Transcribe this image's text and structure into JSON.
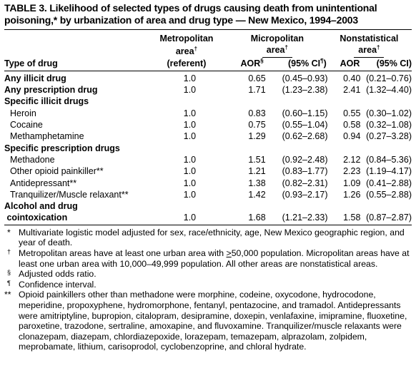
{
  "title_line1": "TABLE 3.  Likelihood of selected types of drugs causing death from unintentional",
  "title_line2": "poisoning,* by urbanization of area and drug type — New Mexico, 1994–2003",
  "header": {
    "type_of_drug": "Type of drug",
    "metro_line1": "Metropolitan",
    "metro_line2": "area",
    "metro_sup": "†",
    "metro_line3": "(referent)",
    "micro_line1": "Micropolitan",
    "micro_line2": "area",
    "micro_sup": "†",
    "non_line1": "Nonstatistical",
    "non_line2": "area",
    "non_sup": "†",
    "aor_micro": "AOR",
    "aor_micro_sup": "§",
    "ci_micro": "(95% CI",
    "ci_micro_sup": "¶",
    "ci_micro_close": ")",
    "aor_non": "AOR",
    "ci_non": "(95% CI)"
  },
  "rows": [
    {
      "label": "Any illicit drug",
      "bold": true,
      "indent": false,
      "metro": "1.0",
      "aor1": "0.65",
      "ci1": "(0.45–0.93)",
      "aor2": "0.40",
      "ci2": "(0.21–0.76)"
    },
    {
      "label": "Any prescription drug",
      "bold": true,
      "indent": false,
      "metro": "1.0",
      "aor1": "1.71",
      "ci1": "(1.23–2.38)",
      "aor2": "2.41",
      "ci2": "(1.32–4.40)"
    },
    {
      "label": "Specific illicit drugs",
      "bold": true,
      "indent": false,
      "section": true
    },
    {
      "label": "Heroin",
      "bold": false,
      "indent": true,
      "metro": "1.0",
      "aor1": "0.83",
      "ci1": "(0.60–1.15)",
      "aor2": "0.55",
      "ci2": "(0.30–1.02)"
    },
    {
      "label": "Cocaine",
      "bold": false,
      "indent": true,
      "metro": "1.0",
      "aor1": "0.75",
      "ci1": "(0.55–1.04)",
      "aor2": "0.58",
      "ci2": "(0.32–1.08)"
    },
    {
      "label": "Methamphetamine",
      "bold": false,
      "indent": true,
      "metro": "1.0",
      "aor1": "1.29",
      "ci1": "(0.62–2.68)",
      "aor2": "0.94",
      "ci2": "(0.27–3.28)"
    },
    {
      "label": "Specific prescription drugs",
      "bold": true,
      "indent": false,
      "section": true
    },
    {
      "label": "Methadone",
      "bold": false,
      "indent": true,
      "metro": "1.0",
      "aor1": "1.51",
      "ci1": "(0.92–2.48)",
      "aor2": "2.12",
      "ci2": "(0.84–5.36)"
    },
    {
      "label": "Other opioid painkiller**",
      "bold": false,
      "indent": true,
      "metro": "1.0",
      "aor1": "1.21",
      "ci1": "(0.83–1.77)",
      "aor2": "2.23",
      "ci2": "(1.19–4.17)"
    },
    {
      "label": "Antidepressant**",
      "bold": false,
      "indent": true,
      "metro": "1.0",
      "aor1": "1.38",
      "ci1": "(0.82–2.31)",
      "aor2": "1.09",
      "ci2": "(0.41–2.88)"
    },
    {
      "label": "Tranquilizer/Muscle relaxant**",
      "bold": false,
      "indent": true,
      "metro": "1.0",
      "aor1": "1.42",
      "ci1": "(0.93–2.17)",
      "aor2": "1.26",
      "ci2": "(0.55–2.88)"
    }
  ],
  "last_row": {
    "label_line1": "Alcohol and drug",
    "label_line2": " cointoxication",
    "metro": "1.0",
    "aor1": "1.68",
    "ci1": "(1.21–2.33)",
    "aor2": "1.58",
    "ci2": "(0.87–2.87)"
  },
  "notes": {
    "n1_mark": "*",
    "n1": "Multivariate logistic model adjusted for sex, race/ethnicity, age, New Mexico geographic region, and year of death.",
    "n2_mark": "†",
    "n2_a": "Metropolitan areas have at least one urban area with ",
    "n2_ge": ">",
    "n2_b": "50,000 population. Micropolitan areas have at least one urban area with 10,000–49,999 population. All other areas are nonstatistical areas.",
    "n3_mark": "§",
    "n3": "Adjusted odds ratio.",
    "n4_mark": "¶",
    "n4": "Confidence interval.",
    "n5_mark": "**",
    "n5": "Opioid painkillers other than methadone were morphine, codeine, oxycodone, hydrocodone, meperidine, propoxyphene, hydromorphone, fentanyl, pentazocine, and tramadol. Antidepressants were amitriptyline, bupropion, citalopram, desipramine, doxepin, venlafaxine, imipramine, fluoxetine, paroxetine, trazodone, sertraline, amoxapine, and fluvoxamine. Tranquilizer/muscle relaxants were clonazepam, diazepam, chlordiazepoxide, lorazepam, temazepam, alprazolam, zolpidem, meprobamate, lithium, carisoprodol, cyclobenzoprine, and chloral hydrate."
  }
}
